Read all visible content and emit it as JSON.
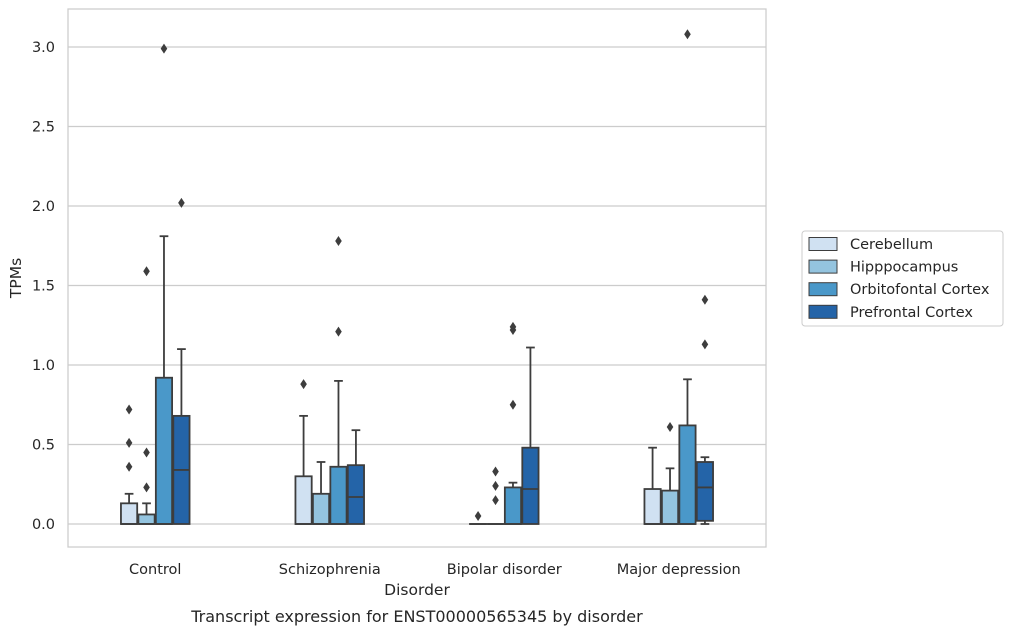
{
  "chart_data": {
    "type": "boxplot",
    "caption": "Transcript expression for ENST00000565345 by disorder",
    "xlabel": "Disorder",
    "ylabel": "TPMs",
    "ylim": [
      -0.15,
      3.24
    ],
    "yticks": [
      0.0,
      0.5,
      1.0,
      1.5,
      2.0,
      2.5,
      3.0
    ],
    "ytick_labels": [
      "0.0",
      "0.5",
      "1.0",
      "1.5",
      "2.0",
      "2.5",
      "3.0"
    ],
    "grid": "horizontal",
    "legend_position": "right",
    "categories": [
      "Control",
      "Schizophrenia",
      "Bipolar disorder",
      "Major depression"
    ],
    "series": [
      {
        "name": "Cerebellum",
        "color": "#d0e1f2",
        "boxes": [
          {
            "whislo": 0.0,
            "q1": 0.0,
            "med": 0.0,
            "q3": 0.13,
            "whishi": 0.19,
            "fliers": [
              0.36,
              0.51,
              0.72
            ]
          },
          {
            "whislo": 0.0,
            "q1": 0.0,
            "med": 0.0,
            "q3": 0.3,
            "whishi": 0.68,
            "fliers": [
              0.88
            ]
          },
          {
            "whislo": 0.0,
            "q1": 0.0,
            "med": 0.0,
            "q3": 0.0,
            "whishi": 0.0,
            "fliers": [
              0.05
            ]
          },
          {
            "whislo": 0.0,
            "q1": 0.0,
            "med": 0.0,
            "q3": 0.22,
            "whishi": 0.48,
            "fliers": []
          }
        ]
      },
      {
        "name": "Hipppocampus",
        "color": "#94c4df",
        "boxes": [
          {
            "whislo": 0.0,
            "q1": 0.0,
            "med": 0.0,
            "q3": 0.06,
            "whishi": 0.13,
            "fliers": [
              0.23,
              0.45,
              1.59
            ]
          },
          {
            "whislo": 0.0,
            "q1": 0.0,
            "med": 0.0,
            "q3": 0.19,
            "whishi": 0.39,
            "fliers": []
          },
          {
            "whislo": 0.0,
            "q1": 0.0,
            "med": 0.0,
            "q3": 0.0,
            "whishi": 0.0,
            "fliers": [
              0.15,
              0.24,
              0.33
            ]
          },
          {
            "whislo": 0.0,
            "q1": 0.0,
            "med": 0.0,
            "q3": 0.21,
            "whishi": 0.35,
            "fliers": [
              0.61
            ]
          }
        ]
      },
      {
        "name": "Orbitofontal Cortex",
        "color": "#4a98c9",
        "boxes": [
          {
            "whislo": 0.0,
            "q1": 0.0,
            "med": 0.0,
            "q3": 0.92,
            "whishi": 1.81,
            "fliers": [
              2.99
            ]
          },
          {
            "whislo": 0.0,
            "q1": 0.0,
            "med": 0.0,
            "q3": 0.36,
            "whishi": 0.9,
            "fliers": [
              1.21,
              1.78
            ]
          },
          {
            "whislo": 0.0,
            "q1": 0.0,
            "med": 0.0,
            "q3": 0.23,
            "whishi": 0.26,
            "fliers": [
              0.75,
              1.22,
              1.24
            ]
          },
          {
            "whislo": 0.0,
            "q1": 0.0,
            "med": 0.0,
            "q3": 0.62,
            "whishi": 0.91,
            "fliers": [
              3.08
            ]
          }
        ]
      },
      {
        "name": "Prefrontal Cortex",
        "color": "#2464a8",
        "boxes": [
          {
            "whislo": 0.0,
            "q1": 0.0,
            "med": 0.34,
            "q3": 0.68,
            "whishi": 1.1,
            "fliers": [
              2.02
            ]
          },
          {
            "whislo": 0.0,
            "q1": 0.0,
            "med": 0.17,
            "q3": 0.37,
            "whishi": 0.59,
            "fliers": []
          },
          {
            "whislo": 0.0,
            "q1": 0.0,
            "med": 0.22,
            "q3": 0.48,
            "whishi": 1.11,
            "fliers": []
          },
          {
            "whislo": 0.0,
            "q1": 0.02,
            "med": 0.23,
            "q3": 0.39,
            "whishi": 0.42,
            "fliers": [
              1.13,
              1.41
            ]
          }
        ]
      }
    ]
  }
}
